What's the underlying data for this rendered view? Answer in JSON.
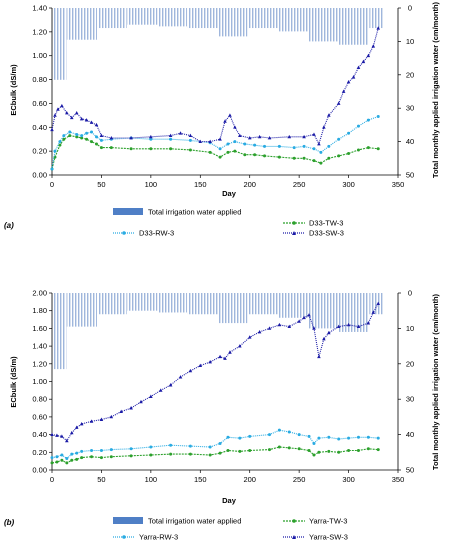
{
  "chart_data": [
    {
      "type": "line",
      "panel_label": "(a)",
      "xlabel": "Day",
      "ylabel": "ECbulk (dS/m)",
      "y2label": "Total monthly applied irrigation water (cm/month)",
      "xlim": [
        0,
        350
      ],
      "ylim": [
        0,
        1.4
      ],
      "y2lim": [
        0,
        50
      ],
      "y2_reversed": true,
      "x_ticks": [
        "0",
        "50",
        "100",
        "150",
        "200",
        "250",
        "300",
        "350"
      ],
      "y_ticks": [
        "0.00",
        "0.20",
        "0.40",
        "0.60",
        "0.80",
        "1.00",
        "1.20",
        "1.40"
      ],
      "y2_ticks": [
        "0",
        "10",
        "20",
        "30",
        "40",
        "50"
      ],
      "legend_position": "bottom",
      "legend": {
        "bars": "Total irrigation water applied",
        "tw": "D33-TW-3",
        "rw": "D33-RW-3",
        "sw": "D33-SW-3"
      },
      "colors": {
        "bars": "#9fb6dc",
        "tw": "#2ca02c",
        "rw": "#29abe2",
        "sw": "#1a1aa6"
      },
      "bars": [
        {
          "start": 0,
          "end": 15,
          "value": 21.5
        },
        {
          "start": 15,
          "end": 46,
          "value": 9.5
        },
        {
          "start": 46,
          "end": 76,
          "value": 6
        },
        {
          "start": 76,
          "end": 107,
          "value": 5
        },
        {
          "start": 107,
          "end": 137,
          "value": 5.5
        },
        {
          "start": 137,
          "end": 168,
          "value": 6
        },
        {
          "start": 168,
          "end": 198,
          "value": 8.5
        },
        {
          "start": 198,
          "end": 229,
          "value": 6
        },
        {
          "start": 229,
          "end": 259,
          "value": 7
        },
        {
          "start": 259,
          "end": 290,
          "value": 10
        },
        {
          "start": 290,
          "end": 321,
          "value": 11
        },
        {
          "start": 321,
          "end": 335,
          "value": 6
        }
      ],
      "series": [
        {
          "key": "tw",
          "marker": "circle",
          "dash": "2,1",
          "x": [
            0,
            3,
            8,
            12,
            18,
            25,
            30,
            35,
            40,
            45,
            50,
            60,
            80,
            100,
            120,
            140,
            160,
            170,
            178,
            185,
            195,
            205,
            215,
            230,
            245,
            255,
            265,
            272,
            280,
            290,
            300,
            310,
            320,
            330
          ],
          "y": [
            0.05,
            0.15,
            0.25,
            0.3,
            0.33,
            0.32,
            0.31,
            0.3,
            0.28,
            0.26,
            0.23,
            0.23,
            0.22,
            0.22,
            0.22,
            0.21,
            0.19,
            0.15,
            0.19,
            0.2,
            0.17,
            0.17,
            0.16,
            0.15,
            0.14,
            0.14,
            0.12,
            0.1,
            0.14,
            0.16,
            0.18,
            0.21,
            0.23,
            0.22
          ]
        },
        {
          "key": "rw",
          "marker": "circle",
          "dash": "1,1",
          "x": [
            0,
            3,
            8,
            12,
            18,
            25,
            30,
            35,
            40,
            45,
            50,
            60,
            80,
            100,
            120,
            140,
            160,
            170,
            178,
            185,
            195,
            205,
            215,
            230,
            245,
            255,
            265,
            272,
            280,
            290,
            300,
            310,
            320,
            330
          ],
          "y": [
            0.05,
            0.2,
            0.28,
            0.33,
            0.36,
            0.34,
            0.33,
            0.35,
            0.36,
            0.32,
            0.29,
            0.3,
            0.31,
            0.3,
            0.3,
            0.29,
            0.27,
            0.22,
            0.26,
            0.28,
            0.26,
            0.25,
            0.24,
            0.24,
            0.23,
            0.24,
            0.22,
            0.19,
            0.24,
            0.3,
            0.35,
            0.41,
            0.46,
            0.49
          ]
        },
        {
          "key": "sw",
          "marker": "triangle",
          "dash": "1,1",
          "x": [
            0,
            3,
            6,
            10,
            15,
            20,
            25,
            30,
            35,
            40,
            45,
            50,
            60,
            80,
            100,
            120,
            130,
            140,
            150,
            160,
            170,
            175,
            180,
            185,
            190,
            200,
            210,
            220,
            240,
            255,
            265,
            270,
            275,
            280,
            290,
            295,
            300,
            305,
            310,
            315,
            320,
            325,
            330
          ],
          "y": [
            0.38,
            0.5,
            0.55,
            0.58,
            0.52,
            0.48,
            0.52,
            0.47,
            0.46,
            0.44,
            0.42,
            0.33,
            0.31,
            0.31,
            0.32,
            0.33,
            0.35,
            0.33,
            0.28,
            0.28,
            0.3,
            0.45,
            0.5,
            0.4,
            0.33,
            0.31,
            0.32,
            0.31,
            0.32,
            0.32,
            0.34,
            0.26,
            0.4,
            0.5,
            0.6,
            0.7,
            0.78,
            0.82,
            0.9,
            0.95,
            1.0,
            1.08,
            1.23
          ]
        }
      ]
    },
    {
      "type": "line",
      "panel_label": "(b)",
      "xlabel": "Day",
      "ylabel": "ECbulk (dS/m)",
      "y2label": "Total monthly applied irrigation water (cm/month)",
      "xlim": [
        0,
        350
      ],
      "ylim": [
        0,
        2.0
      ],
      "y2lim": [
        0,
        50
      ],
      "y2_reversed": true,
      "x_ticks": [
        "0",
        "50",
        "100",
        "150",
        "200",
        "250",
        "300",
        "350"
      ],
      "y_ticks": [
        "0.00",
        "0.20",
        "0.40",
        "0.60",
        "0.80",
        "1.00",
        "1.20",
        "1.40",
        "1.60",
        "1.80",
        "2.00"
      ],
      "y2_ticks": [
        "0",
        "10",
        "20",
        "30",
        "40",
        "50"
      ],
      "legend_position": "bottom",
      "legend": {
        "bars": "Total irrigation water applied",
        "tw": "Yarra-TW-3",
        "rw": "Yarra-RW-3",
        "sw": "Yarra-SW-3"
      },
      "colors": {
        "bars": "#9fb6dc",
        "tw": "#2ca02c",
        "rw": "#29abe2",
        "sw": "#1a1aa6"
      },
      "bars": [
        {
          "start": 0,
          "end": 15,
          "value": 21.5
        },
        {
          "start": 15,
          "end": 46,
          "value": 9.5
        },
        {
          "start": 46,
          "end": 76,
          "value": 6
        },
        {
          "start": 76,
          "end": 107,
          "value": 5
        },
        {
          "start": 107,
          "end": 137,
          "value": 5.5
        },
        {
          "start": 137,
          "end": 168,
          "value": 6
        },
        {
          "start": 168,
          "end": 198,
          "value": 8.5
        },
        {
          "start": 198,
          "end": 229,
          "value": 6
        },
        {
          "start": 229,
          "end": 259,
          "value": 7
        },
        {
          "start": 259,
          "end": 290,
          "value": 10
        },
        {
          "start": 290,
          "end": 321,
          "value": 11
        },
        {
          "start": 321,
          "end": 335,
          "value": 6
        }
      ],
      "series": [
        {
          "key": "tw",
          "marker": "circle",
          "dash": "2,1",
          "x": [
            0,
            5,
            10,
            15,
            20,
            25,
            30,
            40,
            50,
            60,
            80,
            100,
            120,
            140,
            160,
            170,
            178,
            190,
            200,
            220,
            230,
            240,
            250,
            260,
            265,
            270,
            280,
            290,
            300,
            310,
            320,
            330
          ],
          "y": [
            0.08,
            0.09,
            0.11,
            0.08,
            0.11,
            0.12,
            0.14,
            0.15,
            0.14,
            0.15,
            0.16,
            0.17,
            0.18,
            0.18,
            0.17,
            0.19,
            0.22,
            0.21,
            0.22,
            0.23,
            0.26,
            0.25,
            0.24,
            0.22,
            0.17,
            0.2,
            0.21,
            0.2,
            0.22,
            0.22,
            0.24,
            0.23
          ]
        },
        {
          "key": "rw",
          "marker": "circle",
          "dash": "1,1",
          "x": [
            0,
            5,
            10,
            15,
            20,
            25,
            30,
            40,
            50,
            60,
            80,
            100,
            120,
            140,
            160,
            170,
            178,
            190,
            200,
            220,
            230,
            240,
            250,
            260,
            265,
            270,
            280,
            290,
            300,
            310,
            320,
            330
          ],
          "y": [
            0.14,
            0.15,
            0.17,
            0.13,
            0.18,
            0.19,
            0.21,
            0.22,
            0.22,
            0.23,
            0.24,
            0.26,
            0.28,
            0.27,
            0.26,
            0.3,
            0.37,
            0.36,
            0.38,
            0.4,
            0.45,
            0.43,
            0.4,
            0.38,
            0.3,
            0.36,
            0.37,
            0.35,
            0.36,
            0.37,
            0.37,
            0.36
          ]
        },
        {
          "key": "sw",
          "marker": "triangle",
          "dash": "1,1",
          "x": [
            0,
            5,
            10,
            15,
            20,
            25,
            30,
            40,
            50,
            60,
            70,
            80,
            90,
            100,
            110,
            120,
            130,
            140,
            150,
            160,
            170,
            175,
            180,
            190,
            200,
            210,
            220,
            230,
            240,
            250,
            255,
            260,
            265,
            270,
            275,
            280,
            290,
            300,
            310,
            320,
            325,
            330
          ],
          "y": [
            0.4,
            0.39,
            0.38,
            0.33,
            0.42,
            0.48,
            0.52,
            0.55,
            0.57,
            0.6,
            0.66,
            0.7,
            0.77,
            0.83,
            0.9,
            0.96,
            1.05,
            1.12,
            1.18,
            1.22,
            1.28,
            1.26,
            1.33,
            1.4,
            1.5,
            1.56,
            1.6,
            1.64,
            1.62,
            1.68,
            1.72,
            1.75,
            1.6,
            1.28,
            1.48,
            1.55,
            1.62,
            1.64,
            1.62,
            1.66,
            1.78,
            1.88
          ]
        }
      ]
    }
  ]
}
